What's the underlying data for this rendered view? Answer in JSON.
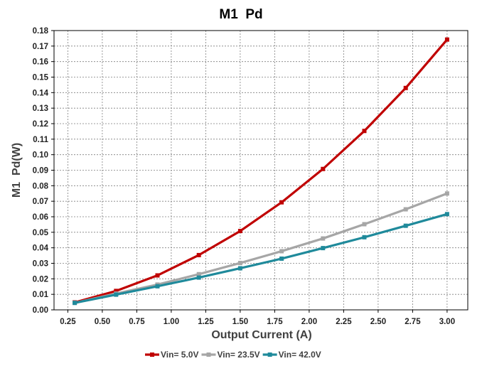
{
  "chart_data": {
    "type": "line",
    "title": "M1  Pd",
    "xlabel": "Output Current (A)",
    "ylabel": "M1  Pd(W)",
    "x": [
      0.3,
      0.6,
      0.9,
      1.2,
      1.5,
      1.8,
      2.1,
      2.4,
      2.7,
      3.0
    ],
    "xlim": [
      0.15,
      3.15
    ],
    "ylim": [
      0,
      0.18
    ],
    "x_ticks": [
      "0.25",
      "0.50",
      "0.75",
      "1.00",
      "1.25",
      "1.50",
      "1.75",
      "2.00",
      "2.25",
      "2.50",
      "2.75",
      "3.00"
    ],
    "y_ticks": [
      "0.00",
      "0.01",
      "0.02",
      "0.03",
      "0.04",
      "0.05",
      "0.06",
      "0.07",
      "0.08",
      "0.09",
      "0.10",
      "0.11",
      "0.12",
      "0.13",
      "0.14",
      "0.15",
      "0.16",
      "0.17",
      "0.18"
    ],
    "grid": true,
    "legend_position": "bottom",
    "series": [
      {
        "name": "Vin= 5.0V",
        "color": "#c00000",
        "values": [
          0.0048,
          0.0122,
          0.0222,
          0.0353,
          0.0508,
          0.0693,
          0.0908,
          0.1153,
          0.143,
          0.1742
        ]
      },
      {
        "name": "Vin= 23.5V",
        "color": "#a6a6a6",
        "values": [
          0.0045,
          0.0105,
          0.0163,
          0.023,
          0.0302,
          0.0378,
          0.046,
          0.0552,
          0.0648,
          0.075
        ]
      },
      {
        "name": "Vin= 42.0V",
        "color": "#1f8a9b",
        "values": [
          0.0045,
          0.0098,
          0.0152,
          0.0208,
          0.0268,
          0.033,
          0.0398,
          0.0468,
          0.0542,
          0.0617
        ]
      }
    ]
  }
}
